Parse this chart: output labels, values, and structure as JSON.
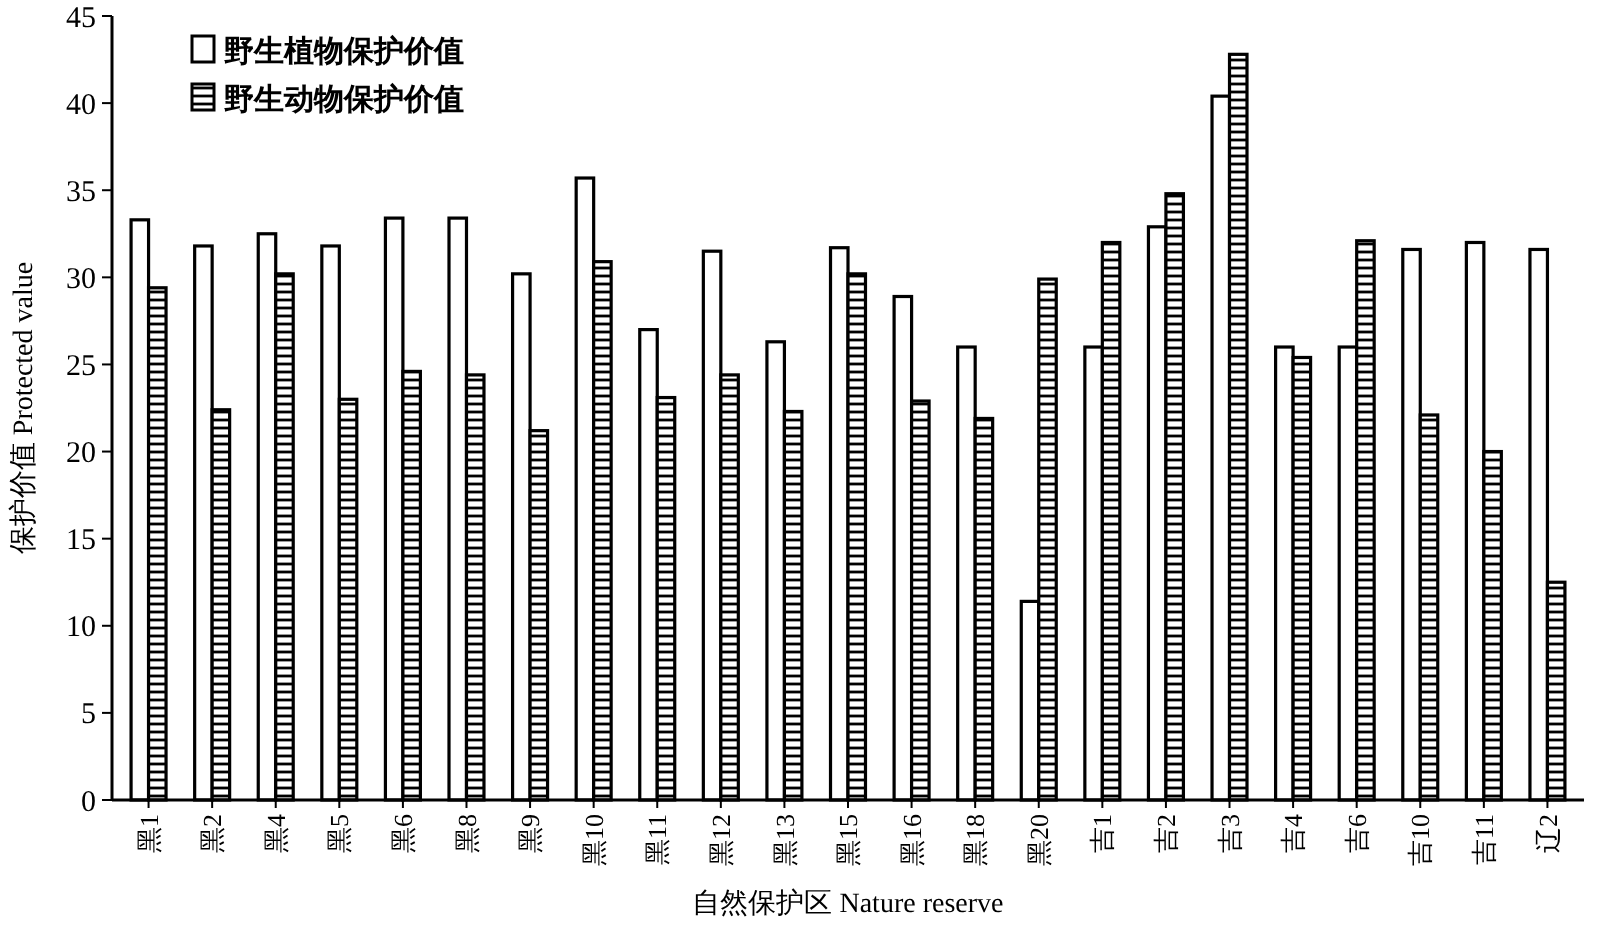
{
  "chart_data": {
    "type": "bar",
    "xlabel": "自然保护区 Nature reserve",
    "ylabel": "保护价值 Protected value",
    "categories": [
      "黑1",
      "黑2",
      "黑4",
      "黑5",
      "黑6",
      "黑8",
      "黑9",
      "黑10",
      "黑11",
      "黑12",
      "黑13",
      "黑15",
      "黑16",
      "黑18",
      "黑20",
      "吉1",
      "吉2",
      "吉3",
      "吉4",
      "吉6",
      "吉10",
      "吉11",
      "辽2"
    ],
    "series": [
      {
        "name": "野生植物保护价值",
        "color": "#ffffff",
        "values": [
          33.3,
          31.8,
          32.5,
          31.8,
          33.4,
          33.4,
          30.2,
          35.7,
          27.0,
          31.5,
          26.3,
          31.7,
          28.9,
          26.0,
          11.4,
          26.0,
          32.9,
          40.4,
          26.0,
          26.0,
          31.6,
          32.0,
          31.6
        ]
      },
      {
        "name": "野生动物保护价值",
        "color": "#000000",
        "values": [
          29.4,
          22.4,
          30.2,
          23.0,
          24.6,
          24.4,
          21.2,
          30.9,
          23.1,
          24.4,
          22.3,
          30.2,
          22.9,
          21.9,
          29.9,
          32.0,
          34.8,
          42.8,
          25.4,
          32.1,
          22.1,
          20.0,
          12.5
        ]
      }
    ],
    "ylim": [
      0,
      45
    ],
    "yticks": [
      0,
      5,
      10,
      15,
      20,
      25,
      30,
      35,
      40,
      45
    ],
    "grid": false,
    "legend": "top left"
  }
}
